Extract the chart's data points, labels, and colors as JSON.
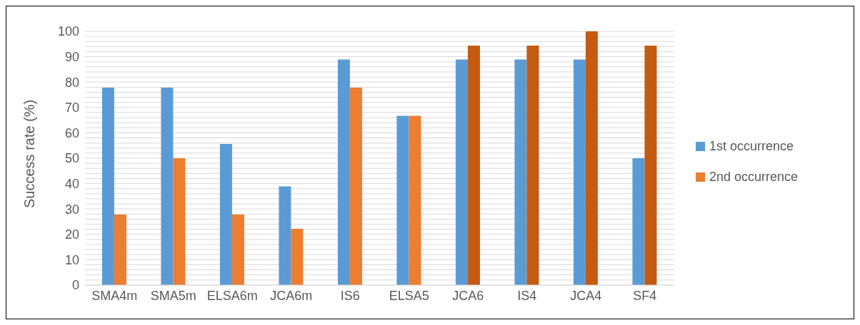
{
  "chart_data": {
    "type": "bar",
    "ylabel": "Success rate (%)",
    "categories": [
      "SMA4m",
      "SMA5m",
      "ELSA6m",
      "JCA6m",
      "IS6",
      "ELSA5",
      "JCA6",
      "IS4",
      "JCA4",
      "SF4"
    ],
    "series": [
      {
        "name": "1st occurrence",
        "color": "#5b9bd5",
        "values": [
          77.8,
          77.8,
          55.6,
          38.9,
          88.9,
          66.7,
          88.9,
          88.9,
          88.9,
          50
        ]
      },
      {
        "name": "2nd occurrence",
        "color": "#ed7d31",
        "colors": [
          "#ed7d31",
          "#ed7d31",
          "#ed7d31",
          "#ed7d31",
          "#ed7d31",
          "#ed7d31",
          "#c55a11",
          "#c55a11",
          "#c55a11",
          "#c55a11"
        ],
        "values": [
          27.8,
          50,
          27.8,
          22.2,
          77.8,
          66.7,
          94.4,
          94.4,
          100,
          94.4
        ]
      }
    ],
    "ylim": [
      0,
      100
    ],
    "yticks": [
      0,
      {
        "value": 2,
        "label": null
      },
      {
        "value": 4,
        "label": null
      },
      {
        "value": 6,
        "label": null
      },
      {
        "value": 8,
        "label": null
      },
      10,
      {
        "value": 12,
        "label": null
      },
      {
        "value": 14,
        "label": null
      },
      {
        "value": 16,
        "label": null
      },
      {
        "value": 18,
        "label": null
      },
      20,
      {
        "value": 22,
        "label": null
      },
      {
        "value": 24,
        "label": null
      },
      {
        "value": 26,
        "label": null
      },
      {
        "value": 28,
        "label": null
      },
      30,
      {
        "value": 32,
        "label": null
      },
      {
        "value": 34,
        "label": null
      },
      {
        "value": 36,
        "label": null
      },
      {
        "value": 38,
        "label": null
      },
      40,
      {
        "value": 42,
        "label": null
      },
      {
        "value": 44,
        "label": null
      },
      {
        "value": 46,
        "label": null
      },
      {
        "value": 48,
        "label": null
      },
      50,
      {
        "value": 52,
        "label": null
      },
      {
        "value": 54,
        "label": null
      },
      {
        "value": 56,
        "label": null
      },
      {
        "value": 58,
        "label": null
      },
      60,
      {
        "value": 62,
        "label": null
      },
      {
        "value": 64,
        "label": null
      },
      {
        "value": 66,
        "label": null
      },
      {
        "value": 68,
        "label": null
      },
      70,
      {
        "value": 72,
        "label": null
      },
      {
        "value": 74,
        "label": null
      },
      {
        "value": 76,
        "label": null
      },
      {
        "value": 78,
        "label": null
      },
      80,
      {
        "value": 82,
        "label": null
      },
      {
        "value": 84,
        "label": null
      },
      {
        "value": 86,
        "label": null
      },
      {
        "value": 88,
        "label": null
      },
      90,
      {
        "value": 92,
        "label": null
      },
      {
        "value": 94,
        "label": null
      },
      {
        "value": 96,
        "label": null
      },
      {
        "value": 98,
        "label": null
      },
      100
    ],
    "grid": "y",
    "legend": "right"
  }
}
